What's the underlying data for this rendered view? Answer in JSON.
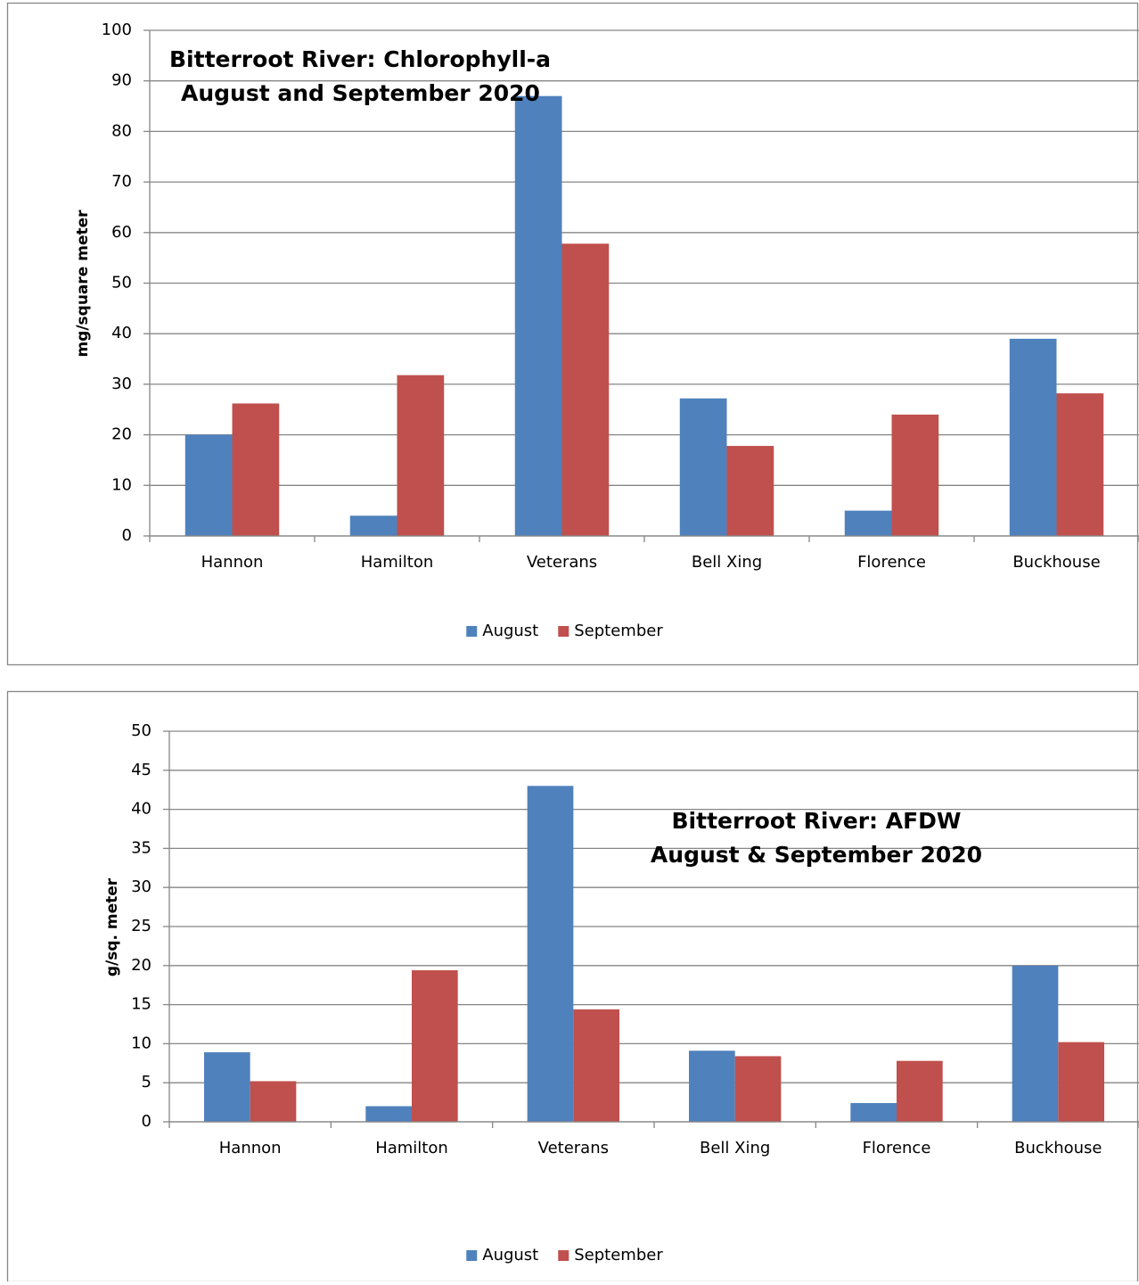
{
  "chart_data": [
    {
      "type": "bar",
      "title": "Bitterroot River: Chlorophyll-a",
      "subtitle": "August and September 2020",
      "y_label": "mg/square meter",
      "categories": [
        "Hannon",
        "Hamilton",
        "Veterans",
        "Bell Xing",
        "Florence",
        "Buckhouse"
      ],
      "series": [
        {
          "name": "August",
          "color": "#4f81bd",
          "values": [
            20,
            4,
            87,
            27.2,
            5,
            39
          ]
        },
        {
          "name": "September",
          "color": "#c0504d",
          "values": [
            26.2,
            31.8,
            57.8,
            17.8,
            24,
            28.2
          ]
        }
      ],
      "ylim": [
        0,
        100
      ],
      "yticks": [
        0,
        10,
        20,
        30,
        40,
        50,
        60,
        70,
        80,
        90,
        100
      ],
      "grid": true,
      "legend": "bottom"
    },
    {
      "type": "bar",
      "title": "Bitterroot River: AFDW",
      "subtitle": "August & September 2020",
      "y_label": "g/sq. meter",
      "categories": [
        "Hannon",
        "Hamilton",
        "Veterans",
        "Bell Xing",
        "Florence",
        "Buckhouse"
      ],
      "series": [
        {
          "name": "August",
          "color": "#4f81bd",
          "values": [
            8.9,
            2,
            43,
            9.1,
            2.4,
            20
          ]
        },
        {
          "name": "September",
          "color": "#c0504d",
          "values": [
            5.2,
            19.4,
            14.4,
            8.4,
            7.8,
            10.2
          ]
        }
      ],
      "ylim": [
        0,
        50
      ],
      "yticks": [
        0,
        5,
        10,
        15,
        20,
        25,
        30,
        35,
        40,
        45,
        50
      ],
      "grid": true,
      "legend": "bottom"
    }
  ]
}
